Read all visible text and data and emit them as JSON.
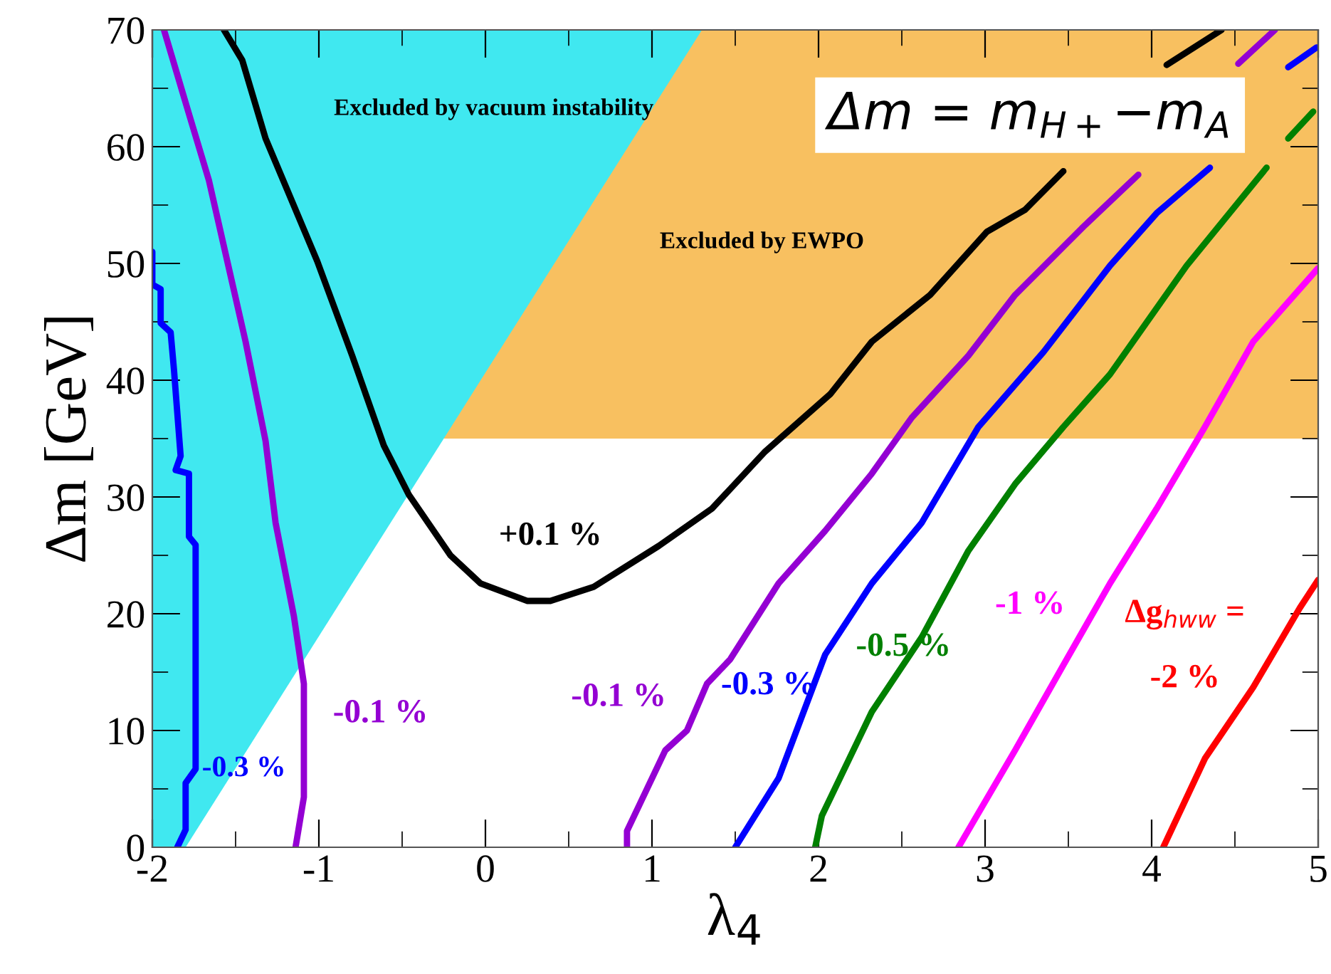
{
  "chart_data": {
    "type": "line",
    "xlabel": "λ$_{4}$",
    "ylabel": "Δm [GeV]",
    "xlim": [
      -2,
      5
    ],
    "ylim": [
      0,
      70
    ],
    "xticks": [
      -2,
      -1,
      0,
      1,
      2,
      3,
      4,
      5
    ],
    "yticks": [
      0,
      10,
      20,
      30,
      40,
      50,
      60,
      70
    ],
    "grid": false,
    "legend": false,
    "annotations": [
      "Excluded by vacuum instability",
      "Δm = m$_{H+}$−m$_{A}$",
      "Δg$_{hww}$ ="
    ],
    "bands": [
      {
        "axis": "y",
        "from": 35,
        "to": 70,
        "label": "Excluded by EWPO",
        "color": "#f8c060"
      }
    ],
    "series": [
      {
        "type": "area",
        "color": "#40e8f0",
        "x": [
          -2,
          -1.8,
          1.3,
          -2
        ],
        "values": [
          0,
          0,
          70,
          70
        ]
      },
      {
        "name": "+0.1 %",
        "color": "#000000",
        "x": [
          -1.57,
          -1.46,
          -1.32,
          -1.01,
          -0.8,
          -0.61,
          -0.46,
          -0.21,
          -0.03,
          0.25,
          0.39,
          0.65,
          1.04,
          1.36,
          1.68,
          2.07,
          2.32,
          2.67,
          3.01,
          3.24,
          3.47,
          3.7,
          4.09,
          4.42
        ],
        "values": [
          70,
          67.4,
          60.7,
          50.2,
          42.1,
          34.4,
          30.2,
          25,
          22.6,
          21.1,
          21.1,
          22.3,
          25.8,
          29,
          33.9,
          38.8,
          43.3,
          47.3,
          52.7,
          54.6,
          57.9,
          null,
          67,
          70
        ]
      },
      {
        "name": "-0.1 %",
        "color": "#9400d3",
        "x": [
          -1.93,
          -1.78,
          -1.66,
          -1.55,
          -1.44,
          -1.32,
          -1.26,
          -1.15,
          -1.09,
          -1.09,
          -1.14
        ],
        "values": [
          70,
          62.8,
          57.1,
          50.2,
          43.3,
          34.8,
          27.8,
          19.8,
          14,
          4.3,
          0
        ]
      },
      {
        "name": "-0.3 %",
        "color": "#0000ff",
        "x": [
          -2.0,
          -2.0,
          -1.95,
          -1.95,
          -1.89,
          -1.87,
          -1.85,
          -1.83,
          -1.86,
          -1.78,
          -1.78,
          -1.74,
          -1.74,
          -1.8,
          -1.8,
          -1.85
        ],
        "values": [
          51,
          48.2,
          47.8,
          44.9,
          44.1,
          40.9,
          37.2,
          33.5,
          32.3,
          32,
          26.6,
          25.9,
          6.7,
          5.5,
          1.5,
          0
        ]
      },
      {
        "name": "-0.1 %",
        "color": "#9400d3",
        "x": [
          0.85,
          0.85,
          1.08,
          1.21,
          1.33,
          1.47,
          1.76,
          2.04,
          2.32,
          2.56,
          2.9,
          3.18,
          3.58,
          3.92,
          4.2,
          4.52,
          4.74
        ],
        "values": [
          0,
          1.4,
          8.3,
          10,
          14,
          16.1,
          22.6,
          27.1,
          32,
          36.8,
          42.1,
          47.3,
          53,
          57.6,
          null,
          67.1,
          70
        ]
      },
      {
        "name": "-0.3 %",
        "color": "#0000ff",
        "x": [
          1.5,
          1.76,
          2.04,
          2.32,
          2.62,
          2.96,
          3.35,
          3.75,
          4.03,
          4.35,
          4.6,
          4.82,
          4.99
        ],
        "values": [
          0,
          5.9,
          16.5,
          22.6,
          27.8,
          36,
          42.4,
          49.8,
          54.3,
          58.2,
          null,
          66.8,
          68.5
        ]
      },
      {
        "name": "-0.5 %",
        "color": "#008000",
        "x": [
          1.98,
          2.02,
          2.32,
          2.62,
          2.9,
          3.18,
          3.47,
          3.75,
          4.21,
          4.69,
          4.76,
          4.82,
          4.97
        ],
        "values": [
          0,
          2.7,
          11.6,
          18,
          25.4,
          31.1,
          36,
          40.5,
          49.8,
          58.2,
          null,
          60.7,
          63
        ]
      },
      {
        "name": "-1 %",
        "color": "#ff00ff",
        "x": [
          2.84,
          3.18,
          3.47,
          3.75,
          4.03,
          4.32,
          4.61,
          5.0
        ],
        "values": [
          0,
          8.3,
          15.6,
          22.6,
          29,
          36,
          43.3,
          49.6
        ]
      },
      {
        "name": "-2 %",
        "color": "#ff0000",
        "x": [
          4.07,
          4.32,
          4.61,
          4.89,
          5.0
        ],
        "values": [
          0,
          7.6,
          13.7,
          20.5,
          22.9
        ]
      }
    ]
  }
}
